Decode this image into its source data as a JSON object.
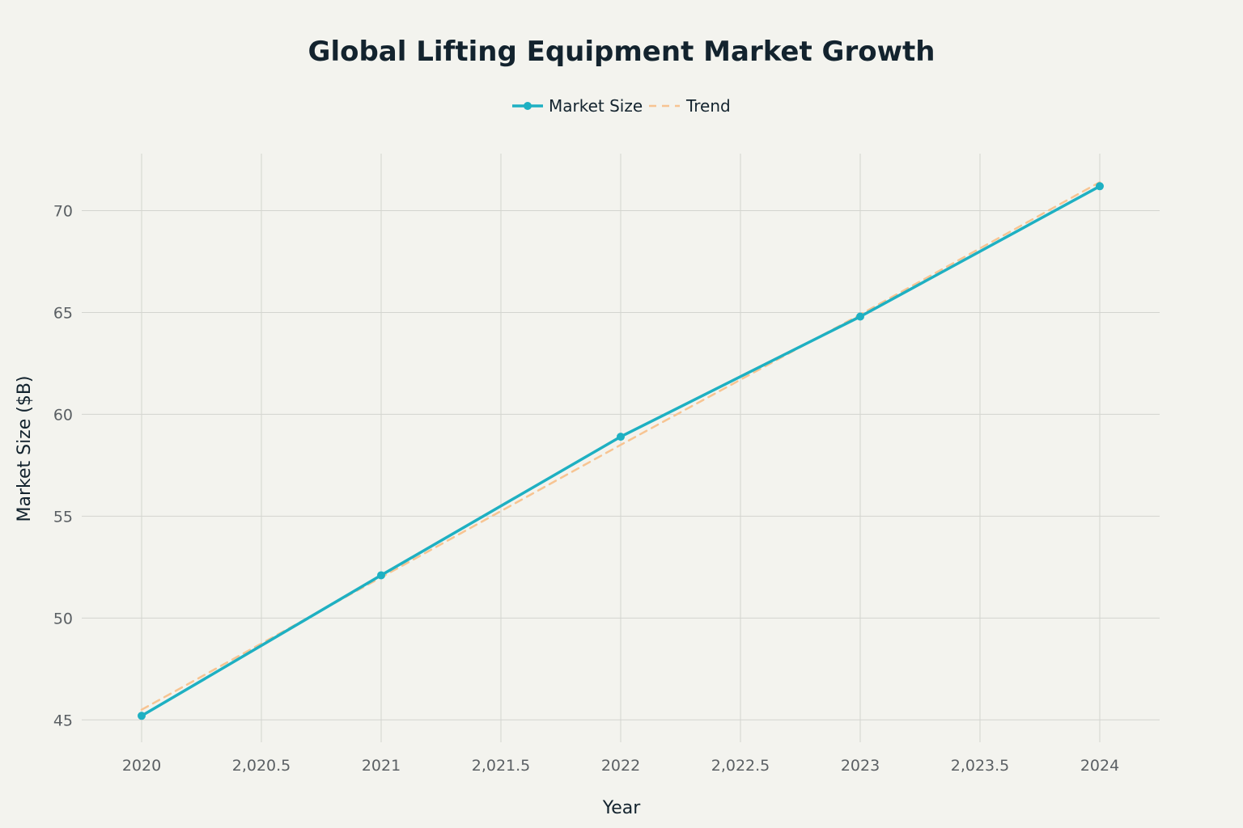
{
  "chart_data": {
    "type": "line",
    "title": "Global Lifting Equipment Market Growth",
    "xlabel": "Year",
    "ylabel": "Market Size ($B)",
    "x": [
      2020,
      2021,
      2022,
      2023,
      2024
    ],
    "xlim": [
      2019.75,
      2024.25
    ],
    "ylim": [
      43.9,
      72.8
    ],
    "x_ticks": [
      2020,
      2020.5,
      2021,
      2021.5,
      2022,
      2022.5,
      2023,
      2023.5,
      2024
    ],
    "x_tick_labels": [
      "2020",
      "2,020.5",
      "2021",
      "2,021.5",
      "2022",
      "2,022.5",
      "2023",
      "2,023.5",
      "2024"
    ],
    "y_ticks": [
      45,
      50,
      55,
      60,
      65,
      70
    ],
    "y_tick_labels": [
      "45",
      "50",
      "55",
      "60",
      "65",
      "70"
    ],
    "grid": true,
    "legend_position": "top-center",
    "series": [
      {
        "name": "Market Size",
        "values": [
          45.2,
          52.1,
          58.9,
          64.8,
          71.2
        ],
        "color": "#1eb0c2",
        "style": "solid",
        "markers": true
      },
      {
        "name": "Trend",
        "values": [
          45.5,
          52.0,
          58.5,
          64.9,
          71.4
        ],
        "color": "#f7c492",
        "style": "dashed",
        "markers": false
      }
    ]
  }
}
